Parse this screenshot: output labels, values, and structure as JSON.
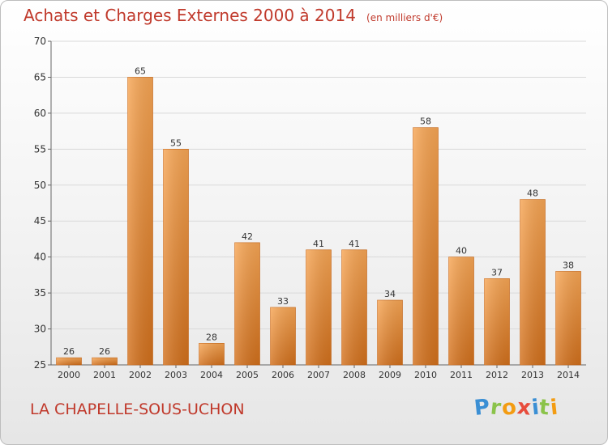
{
  "header": {
    "title": "Achats et Charges Externes 2000 à 2014",
    "subtitle": "(en milliers d'€)"
  },
  "footer": {
    "place": "LA CHAPELLE-SOUS-UCHON",
    "logo": [
      "P",
      "r",
      "o",
      "x",
      "i",
      "t",
      "i"
    ],
    "logo_colors": [
      "#3b8fd4",
      "#8bc34a",
      "#f39c12",
      "#e74c3c",
      "#3b8fd4",
      "#8bc34a",
      "#f39c12"
    ]
  },
  "chart_data": {
    "type": "bar",
    "title": "Achats et Charges Externes 2000 à 2014",
    "subtitle": "(en milliers d'€)",
    "categories": [
      "2000",
      "2001",
      "2002",
      "2003",
      "2004",
      "2005",
      "2006",
      "2007",
      "2008",
      "2009",
      "2010",
      "2011",
      "2012",
      "2013",
      "2014"
    ],
    "values": [
      26,
      26,
      65,
      55,
      28,
      42,
      33,
      41,
      41,
      34,
      58,
      40,
      37,
      48,
      38
    ],
    "ylim": [
      25,
      70
    ],
    "yticks": [
      25,
      30,
      35,
      40,
      45,
      50,
      55,
      60,
      65,
      70
    ],
    "grid": true,
    "bar_color_top": "#f7a655",
    "bar_color_bottom": "#d2701c"
  }
}
